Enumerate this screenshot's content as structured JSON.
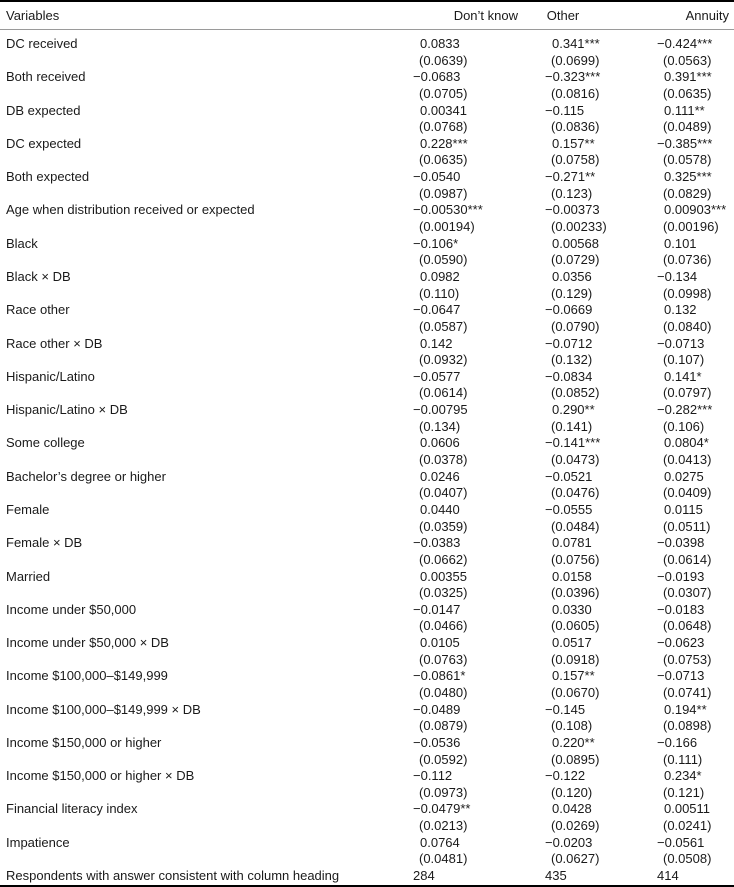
{
  "headers": [
    "Variables",
    "Don’t know",
    "Other",
    "Annuity"
  ],
  "rows": [
    {
      "label": "DC received",
      "coef": [
        "0.0833",
        "0.341***",
        "−0.424***"
      ],
      "se": [
        "(0.0639)",
        "(0.0699)",
        "(0.0563)"
      ]
    },
    {
      "label": "Both received",
      "coef": [
        "−0.0683",
        "−0.323***",
        "0.391***"
      ],
      "se": [
        "(0.0705)",
        "(0.0816)",
        "(0.0635)"
      ]
    },
    {
      "label": "DB expected",
      "coef": [
        "0.00341",
        "−0.115",
        "0.111**"
      ],
      "se": [
        "(0.0768)",
        "(0.0836)",
        "(0.0489)"
      ]
    },
    {
      "label": "DC expected",
      "coef": [
        "0.228***",
        "0.157**",
        "−0.385***"
      ],
      "se": [
        "(0.0635)",
        "(0.0758)",
        "(0.0578)"
      ]
    },
    {
      "label": "Both expected",
      "coef": [
        "−0.0540",
        "−0.271**",
        "0.325***"
      ],
      "se": [
        "(0.0987)",
        "(0.123)",
        "(0.0829)"
      ]
    },
    {
      "label": "Age when distribution received or expected",
      "coef": [
        "−0.00530***",
        "−0.00373",
        "0.00903***"
      ],
      "se": [
        "(0.00194)",
        "(0.00233)",
        "(0.00196)"
      ]
    },
    {
      "label": "Black",
      "coef": [
        "−0.106*",
        "0.00568",
        "0.101"
      ],
      "se": [
        "(0.0590)",
        "(0.0729)",
        "(0.0736)"
      ]
    },
    {
      "label": "Black × DB",
      "coef": [
        "0.0982",
        "0.0356",
        "−0.134"
      ],
      "se": [
        "(0.110)",
        "(0.129)",
        "(0.0998)"
      ]
    },
    {
      "label": "Race other",
      "coef": [
        "−0.0647",
        "−0.0669",
        "0.132"
      ],
      "se": [
        "(0.0587)",
        "(0.0790)",
        "(0.0840)"
      ]
    },
    {
      "label": "Race other × DB",
      "coef": [
        "0.142",
        "−0.0712",
        "−0.0713"
      ],
      "se": [
        "(0.0932)",
        "(0.132)",
        "(0.107)"
      ]
    },
    {
      "label": "Hispanic/Latino",
      "coef": [
        "−0.0577",
        "−0.0834",
        "0.141*"
      ],
      "se": [
        "(0.0614)",
        "(0.0852)",
        "(0.0797)"
      ]
    },
    {
      "label": "Hispanic/Latino × DB",
      "coef": [
        "−0.00795",
        "0.290**",
        "−0.282***"
      ],
      "se": [
        "(0.134)",
        "(0.141)",
        "(0.106)"
      ]
    },
    {
      "label": "Some college",
      "coef": [
        "0.0606",
        "−0.141***",
        "0.0804*"
      ],
      "se": [
        "(0.0378)",
        "(0.0473)",
        "(0.0413)"
      ]
    },
    {
      "label": "Bachelor’s degree or higher",
      "coef": [
        "0.0246",
        "−0.0521",
        "0.0275"
      ],
      "se": [
        "(0.0407)",
        "(0.0476)",
        "(0.0409)"
      ]
    },
    {
      "label": "Female",
      "coef": [
        "0.0440",
        "−0.0555",
        "0.0115"
      ],
      "se": [
        "(0.0359)",
        "(0.0484)",
        "(0.0511)"
      ]
    },
    {
      "label": "Female × DB",
      "coef": [
        "−0.0383",
        "0.0781",
        "−0.0398"
      ],
      "se": [
        "(0.0662)",
        "(0.0756)",
        "(0.0614)"
      ]
    },
    {
      "label": "Married",
      "coef": [
        "0.00355",
        "0.0158",
        "−0.0193"
      ],
      "se": [
        "(0.0325)",
        "(0.0396)",
        "(0.0307)"
      ]
    },
    {
      "label": "Income under $50,000",
      "coef": [
        "−0.0147",
        "0.0330",
        "−0.0183"
      ],
      "se": [
        "(0.0466)",
        "(0.0605)",
        "(0.0648)"
      ]
    },
    {
      "label": "Income under $50,000 × DB",
      "coef": [
        "0.0105",
        "0.0517",
        "−0.0623"
      ],
      "se": [
        "(0.0763)",
        "(0.0918)",
        "(0.0753)"
      ]
    },
    {
      "label": "Income $100,000–$149,999",
      "coef": [
        "−0.0861*",
        "0.157**",
        "−0.0713"
      ],
      "se": [
        "(0.0480)",
        "(0.0670)",
        "(0.0741)"
      ]
    },
    {
      "label": "Income $100,000–$149,999 × DB",
      "coef": [
        "−0.0489",
        "−0.145",
        "0.194**"
      ],
      "se": [
        "(0.0879)",
        "(0.108)",
        "(0.0898)"
      ]
    },
    {
      "label": "Income $150,000 or higher",
      "coef": [
        "−0.0536",
        "0.220**",
        "−0.166"
      ],
      "se": [
        "(0.0592)",
        "(0.0895)",
        "(0.111)"
      ]
    },
    {
      "label": "Income $150,000 or higher × DB",
      "coef": [
        "−0.112",
        "−0.122",
        "0.234*"
      ],
      "se": [
        "(0.0973)",
        "(0.120)",
        "(0.121)"
      ]
    },
    {
      "label": "Financial literacy index",
      "coef": [
        "−0.0479**",
        "0.0428",
        "0.00511"
      ],
      "se": [
        "(0.0213)",
        "(0.0269)",
        "(0.0241)"
      ]
    },
    {
      "label": "Impatience",
      "coef": [
        "0.0764",
        "−0.0203",
        "−0.0561"
      ],
      "se": [
        "(0.0481)",
        "(0.0627)",
        "(0.0508)"
      ]
    }
  ],
  "footer": {
    "label": "Respondents with answer consistent with column heading",
    "values": [
      "284",
      "435",
      "414"
    ]
  }
}
